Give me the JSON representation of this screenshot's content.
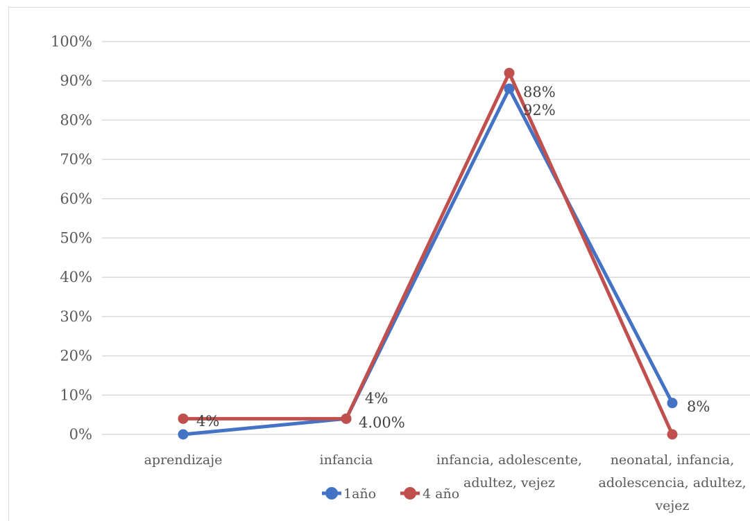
{
  "chart_data": {
    "type": "line",
    "categories": [
      [
        "aprendizaje"
      ],
      [
        "infancia"
      ],
      [
        "infancia, adolescente,",
        "adultez, vejez"
      ],
      [
        "neonatal, infancia,",
        "adolescencia, adultez,",
        "vejez"
      ]
    ],
    "ylim": [
      0,
      100
    ],
    "yticks": [
      "0%",
      "10%",
      "20%",
      "30%",
      "40%",
      "50%",
      "60%",
      "70%",
      "80%",
      "90%",
      "100%"
    ],
    "grid": true,
    "legend_position": "bottom",
    "series": [
      {
        "name": "1año",
        "color": "#4472c4",
        "values": [
          0,
          4,
          88,
          8
        ],
        "labels": [
          "",
          "4%",
          "88%",
          "8%"
        ]
      },
      {
        "name": "4 año",
        "color": "#c0504d",
        "values": [
          4,
          4,
          92,
          0
        ],
        "labels": [
          "4%",
          "4.00%",
          "92%",
          ""
        ]
      }
    ]
  }
}
